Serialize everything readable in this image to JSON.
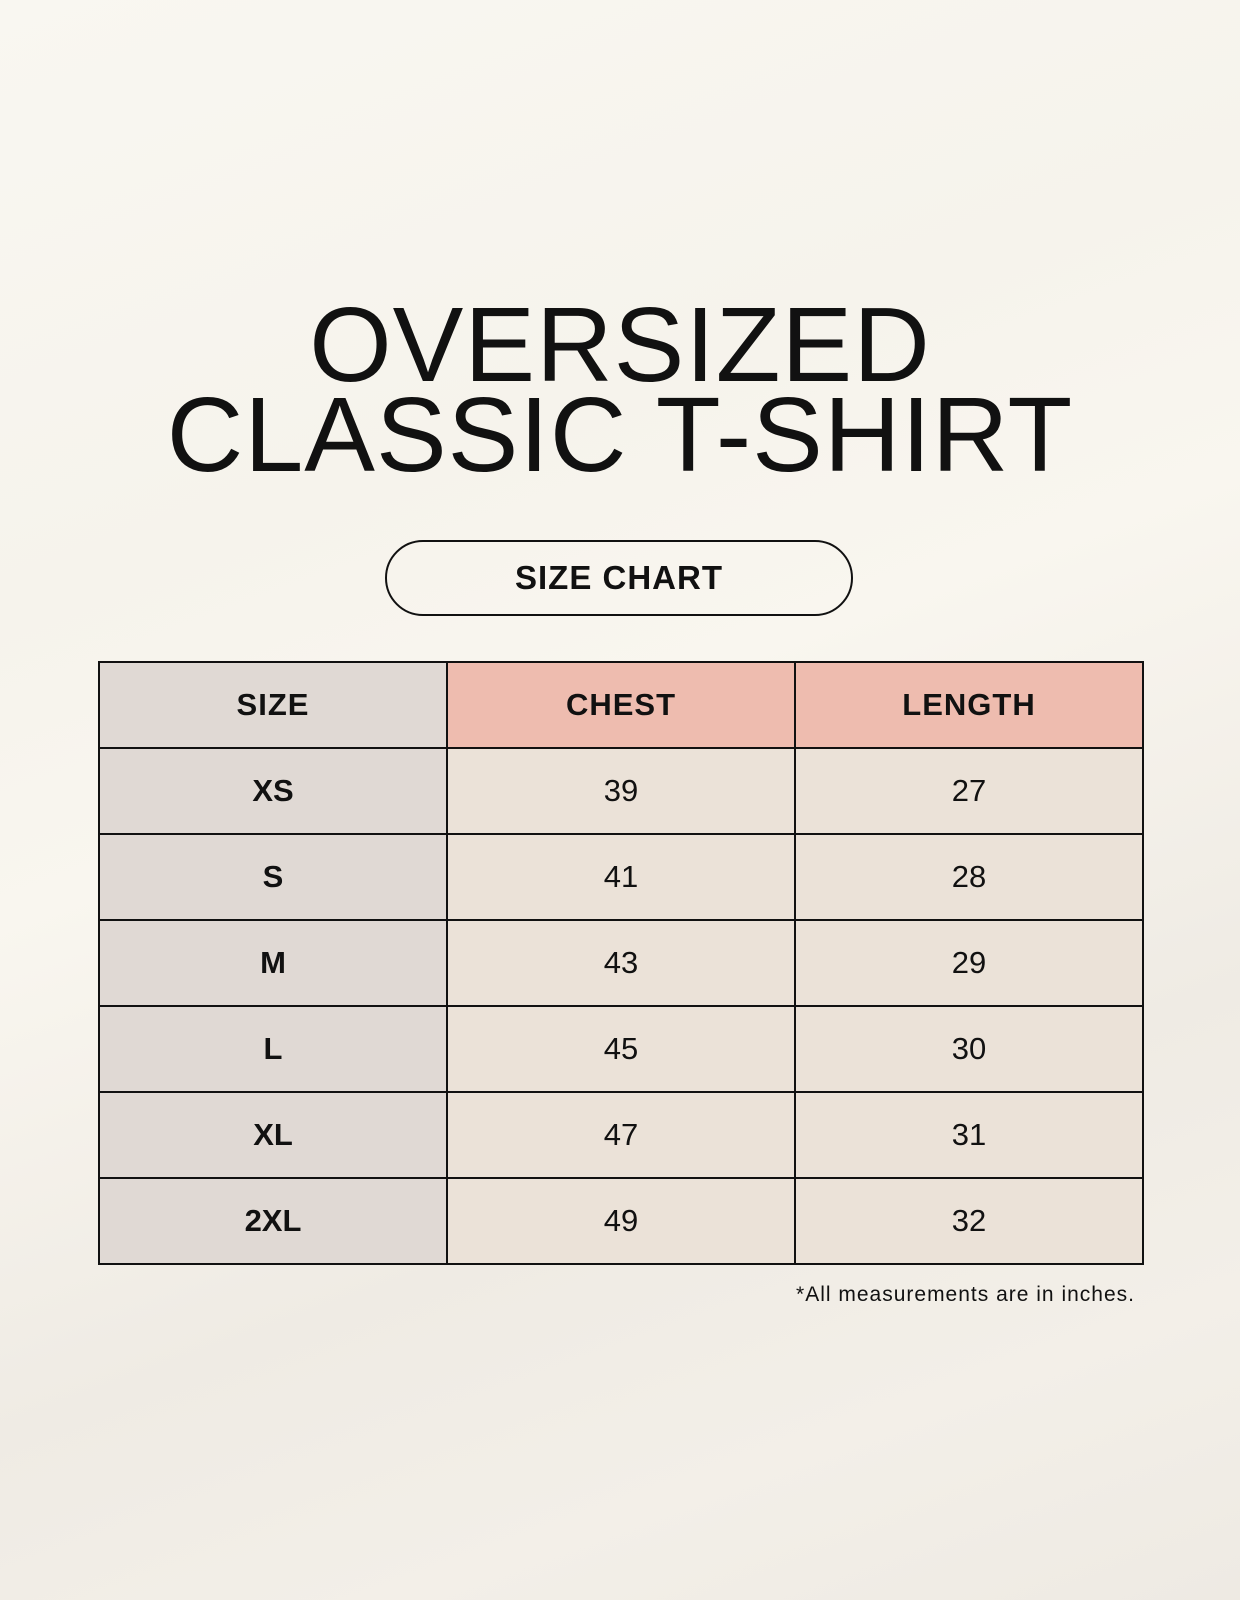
{
  "title": {
    "line1": "OVERSIZED",
    "line2": "CLASSIC T-SHIRT"
  },
  "subtitle": "SIZE CHART",
  "colors": {
    "size_column": "#e0d9d4",
    "header_accent": "#eebcaf",
    "value_cells": "#ebe2d8"
  },
  "table": {
    "headers": [
      "SIZE",
      "CHEST",
      "LENGTH"
    ],
    "rows": [
      {
        "size": "XS",
        "chest": "39",
        "length": "27"
      },
      {
        "size": "S",
        "chest": "41",
        "length": "28"
      },
      {
        "size": "M",
        "chest": "43",
        "length": "29"
      },
      {
        "size": "L",
        "chest": "45",
        "length": "30"
      },
      {
        "size": "XL",
        "chest": "47",
        "length": "31"
      },
      {
        "size": "2XL",
        "chest": "49",
        "length": "32"
      }
    ]
  },
  "footnote": "*All measurements are in inches."
}
